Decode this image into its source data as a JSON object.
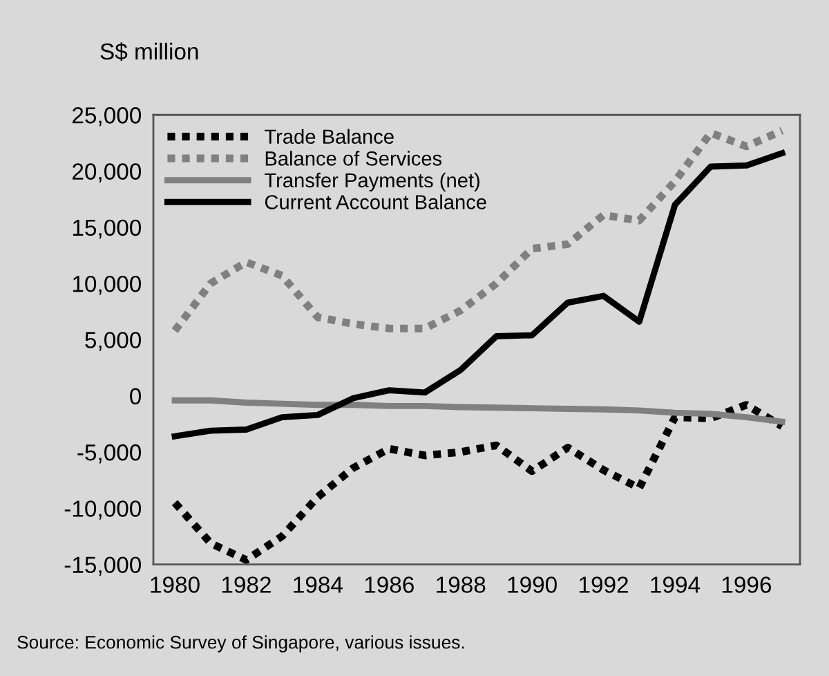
{
  "chart_data": {
    "type": "line",
    "ylabel": "S$ million",
    "x": [
      1980,
      1981,
      1982,
      1983,
      1984,
      1985,
      1986,
      1987,
      1988,
      1989,
      1990,
      1991,
      1992,
      1993,
      1994,
      1995,
      1996,
      1997
    ],
    "series": [
      {
        "name": "Trade Balance",
        "color": "#000000",
        "line_style": "dotted",
        "values": [
          -9500,
          -13100,
          -14600,
          -12500,
          -9000,
          -6400,
          -4700,
          -5300,
          -5000,
          -4400,
          -6700,
          -4600,
          -6600,
          -8200,
          -1900,
          -2000,
          -800,
          -2700
        ]
      },
      {
        "name": "Balance of Services",
        "color": "#808080",
        "line_style": "dotted",
        "values": [
          5800,
          10000,
          11900,
          10700,
          7000,
          6400,
          6000,
          6000,
          7600,
          10000,
          13100,
          13500,
          16100,
          15600,
          19100,
          23400,
          22200,
          23600
        ]
      },
      {
        "name": "Transfer Payments (net)",
        "color": "#808080",
        "line_style": "solid",
        "values": [
          -400,
          -400,
          -600,
          -700,
          -800,
          -800,
          -900,
          -900,
          -1000,
          -1050,
          -1100,
          -1150,
          -1200,
          -1300,
          -1500,
          -1600,
          -1900,
          -2300
        ]
      },
      {
        "name": "Current Account Balance",
        "color": "#000000",
        "line_style": "solid",
        "values": [
          -3600,
          -3100,
          -3000,
          -1900,
          -1700,
          -200,
          500,
          300,
          2300,
          5300,
          5400,
          8300,
          8900,
          6600,
          17000,
          20400,
          20500,
          21600
        ]
      }
    ],
    "xlim": [
      1979.4,
      1997.5
    ],
    "ylim": [
      -15000,
      25000
    ],
    "xticks": [
      1980,
      1982,
      1984,
      1986,
      1988,
      1990,
      1992,
      1994,
      1996
    ],
    "yticks": [
      {
        "value": -15000,
        "label": "-15,000"
      },
      {
        "value": -10000,
        "label": "-10,000"
      },
      {
        "value": -5000,
        "label": "-5,000"
      },
      0,
      {
        "value": 5000,
        "label": "5,000"
      },
      {
        "value": 10000,
        "label": "10,000"
      },
      {
        "value": 15000,
        "label": "15,000"
      },
      {
        "value": 20000,
        "label": "20,000"
      },
      {
        "value": 25000,
        "label": "25,000"
      }
    ],
    "grid": false,
    "legend": "top left",
    "marker": "none",
    "annotations": [
      "Source: Economic Survey of Singapore, various issues."
    ]
  }
}
